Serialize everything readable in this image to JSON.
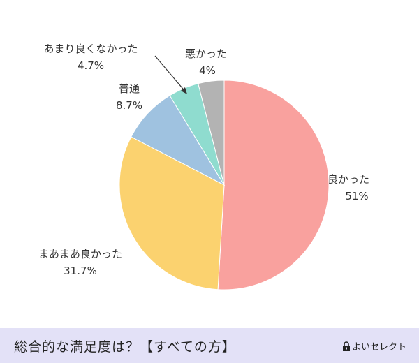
{
  "chart_data": {
    "type": "pie",
    "title": "総合的な満足度は？【すべての方】",
    "slices": [
      {
        "label": "良かった",
        "value_label": "51%",
        "value": 51,
        "color": "#f9a19e"
      },
      {
        "label": "まあまあ良かった",
        "value_label": "31.7%",
        "value": 31.7,
        "color": "#fbd26f"
      },
      {
        "label": "普通",
        "value_label": "8.7%",
        "value": 8.7,
        "color": "#9fc2e0"
      },
      {
        "label": "あまり良くなかった",
        "value_label": "4.7%",
        "value": 4.7,
        "color": "#8fdccf"
      },
      {
        "label": "悪かった",
        "value_label": "4%",
        "value": 4,
        "color": "#b3b3b3"
      }
    ],
    "start_angle": "12 o'clock",
    "direction": "clockwise"
  },
  "footer": {
    "title": "総合的な満足度は？【すべての方】",
    "brand": "よいセレクト"
  },
  "colors": {
    "footer_bg": "#e3e1f7",
    "text": "#333333"
  }
}
